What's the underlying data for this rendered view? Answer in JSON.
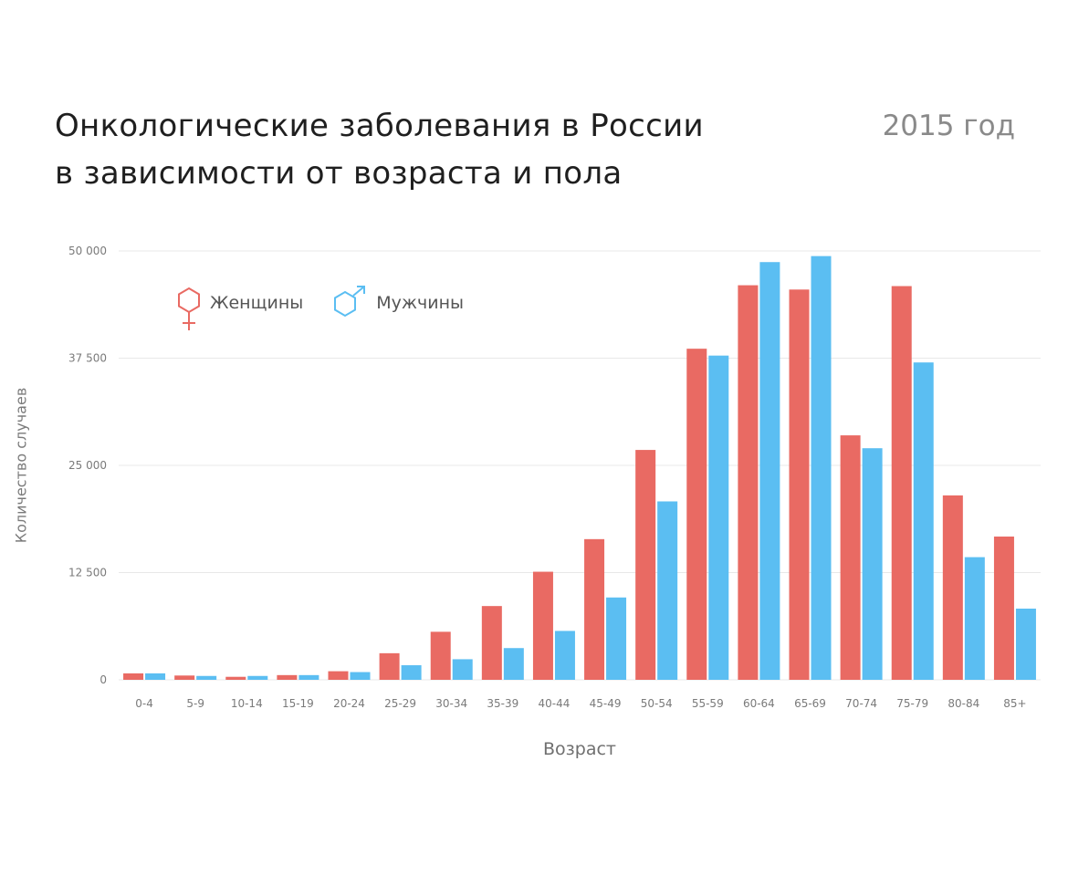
{
  "title_lines": [
    "Онкологические заболевания в России",
    "в зависимости от возраста и пола"
  ],
  "year_label": "2015 год",
  "legend": {
    "female_label": "Женщины",
    "female_icon": "female-symbol-icon",
    "male_label": "Мужчины",
    "male_icon": "male-symbol-icon"
  },
  "colors": {
    "female": "#E96A63",
    "male": "#5BBEF2",
    "grid": "#E8E8E8",
    "tick": "#7a7a7a"
  },
  "chart_data": {
    "type": "bar",
    "title": "Онкологические заболевания в России в зависимости от возраста и пола",
    "subtitle": "2015 год",
    "xlabel": "Возраст",
    "ylabel": "Количество случаев",
    "categories": [
      "0-4",
      "5-9",
      "10-14",
      "15-19",
      "20-24",
      "25-29",
      "30-34",
      "35-39",
      "40-44",
      "45-49",
      "50-54",
      "55-59",
      "60-64",
      "65-69",
      "70-74",
      "75-79",
      "80-84",
      "85+"
    ],
    "series": [
      {
        "name": "Женщины",
        "values": [
          750,
          500,
          350,
          550,
          1000,
          3100,
          5600,
          8600,
          12600,
          16400,
          26800,
          38600,
          46000,
          45500,
          28500,
          45900,
          21500,
          16700
        ]
      },
      {
        "name": "Мужчины",
        "values": [
          750,
          450,
          450,
          550,
          900,
          1700,
          2400,
          3700,
          5700,
          9600,
          20800,
          37800,
          48700,
          49400,
          27000,
          37000,
          14300,
          8300
        ]
      }
    ],
    "ylim": [
      0,
      50000
    ],
    "yticks": [
      0,
      12500,
      25000,
      37500,
      50000
    ],
    "ytick_labels": [
      "0",
      "12 500",
      "25 000",
      "37 500",
      "50 000"
    ],
    "grid": true,
    "legend_position": "top-left"
  }
}
